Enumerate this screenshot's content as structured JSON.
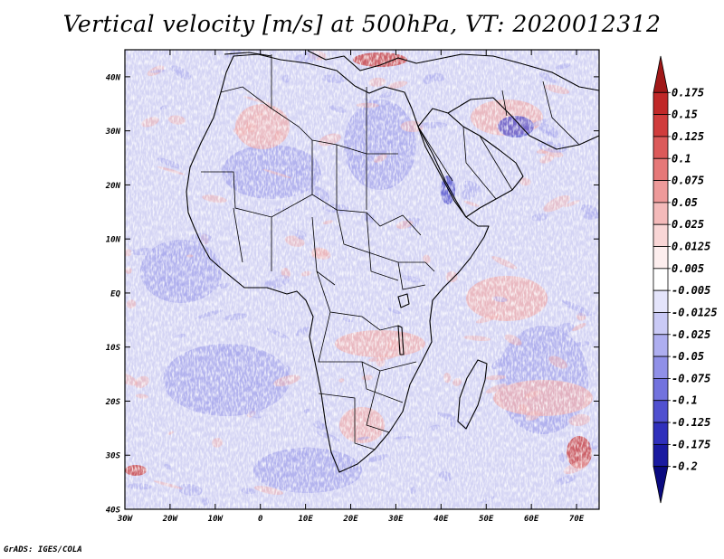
{
  "title": "Vertical velocity [m/s] at 500hPa, VT: 2020012312",
  "credit": "GrADS: IGES/COLA",
  "map": {
    "lon_range": [
      -30,
      75
    ],
    "lat_range": [
      -40,
      45
    ],
    "lat_ticks": [
      {
        "value": 40,
        "label": "40N"
      },
      {
        "value": 30,
        "label": "30N"
      },
      {
        "value": 20,
        "label": "20N"
      },
      {
        "value": 10,
        "label": "10N"
      },
      {
        "value": 0,
        "label": "EQ"
      },
      {
        "value": -10,
        "label": "10S"
      },
      {
        "value": -20,
        "label": "20S"
      },
      {
        "value": -30,
        "label": "30S"
      },
      {
        "value": -40,
        "label": "40S"
      }
    ],
    "lon_ticks": [
      {
        "value": -30,
        "label": "30W"
      },
      {
        "value": -20,
        "label": "20W"
      },
      {
        "value": -10,
        "label": "10W"
      },
      {
        "value": 0,
        "label": "0"
      },
      {
        "value": 10,
        "label": "10E"
      },
      {
        "value": 20,
        "label": "20E"
      },
      {
        "value": 30,
        "label": "30E"
      },
      {
        "value": 40,
        "label": "40E"
      },
      {
        "value": 50,
        "label": "50E"
      },
      {
        "value": 60,
        "label": "60E"
      },
      {
        "value": 70,
        "label": "70E"
      }
    ]
  },
  "colorbar": {
    "levels": [
      "0.175",
      "0.15",
      "0.125",
      "0.1",
      "0.075",
      "0.05",
      "0.025",
      "0.0125",
      "0.005",
      "-0.005",
      "-0.0125",
      "-0.025",
      "-0.05",
      "-0.075",
      "-0.1",
      "-0.125",
      "-0.175",
      "-0.2"
    ],
    "colors": [
      "#a01818",
      "#c02828",
      "#d03c3c",
      "#dc5a5a",
      "#e67878",
      "#ee9a9a",
      "#f4baba",
      "#f9d6d6",
      "#fdeeee",
      "#ffffff",
      "#e4e4fb",
      "#cacaf6",
      "#aeaef0",
      "#9090e8",
      "#7272de",
      "#5050d0",
      "#3030bc",
      "#1a1aa0",
      "#0a0a80"
    ]
  },
  "field_palette": {
    "background": "#d4d4f4",
    "blue_patch": "#a8a8ec",
    "red_patch": "#f0b0b0",
    "dark_red": "#c83a3a",
    "dark_blue": "#5050cc"
  }
}
